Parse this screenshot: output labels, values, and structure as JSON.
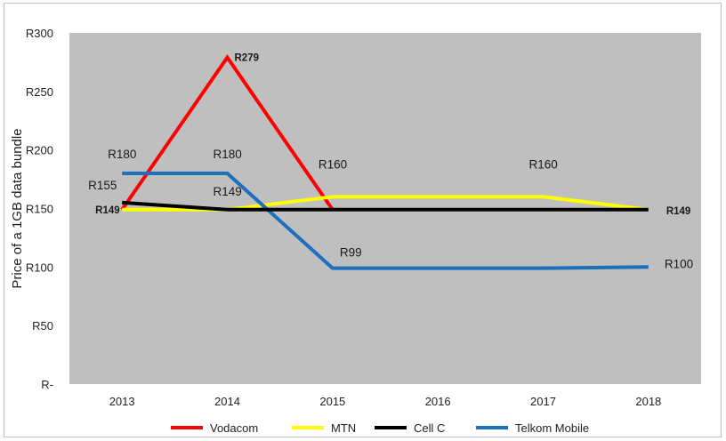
{
  "chart_data": {
    "type": "line",
    "ylabel": "Price of a 1GB data bundle",
    "categories": [
      "2013",
      "2014",
      "2015",
      "2016",
      "2017",
      "2018"
    ],
    "ylim": [
      0,
      300
    ],
    "yticks": [
      {
        "value": 300,
        "label": "R300"
      },
      {
        "value": 250,
        "label": "R250"
      },
      {
        "value": 200,
        "label": "R200"
      },
      {
        "value": 150,
        "label": "R150"
      },
      {
        "value": 100,
        "label": "R100"
      },
      {
        "value": 50,
        "label": "R50"
      },
      {
        "value": 0,
        "label": "R-"
      }
    ],
    "grid": false,
    "legend_position": "bottom",
    "series": [
      {
        "name": "Vodacom",
        "color": "#ff0000",
        "values": [
          149,
          279,
          149,
          null,
          null,
          null
        ]
      },
      {
        "name": "MTN",
        "color": "#ffff00",
        "values": [
          149,
          149,
          160,
          160,
          160,
          149
        ]
      },
      {
        "name": "Cell C",
        "color": "#000000",
        "values": [
          155,
          149,
          149,
          149,
          149,
          149
        ]
      },
      {
        "name": "Telkom  Mobile",
        "color": "#1f6fbf",
        "values": [
          180,
          180,
          99,
          99,
          99,
          100
        ]
      }
    ],
    "data_labels": [
      {
        "text": "R279",
        "series": 0,
        "index": 1,
        "style": "bold"
      },
      {
        "text": "R149",
        "series": 0,
        "index": 0,
        "style": "bold"
      },
      {
        "text": "R155",
        "series": 2,
        "index": 0,
        "style": "normal"
      },
      {
        "text": "R149",
        "series": 2,
        "index": 1,
        "style": "normal"
      },
      {
        "text": "R149",
        "series": 2,
        "index": 5,
        "style": "bold"
      },
      {
        "text": "R160",
        "series": 1,
        "index": 2,
        "style": "normal"
      },
      {
        "text": "R160",
        "series": 1,
        "index": 4,
        "style": "normal"
      },
      {
        "text": "R180",
        "series": 3,
        "index": 0,
        "style": "normal"
      },
      {
        "text": "R180",
        "series": 3,
        "index": 1,
        "style": "normal"
      },
      {
        "text": "R99",
        "series": 3,
        "index": 2,
        "style": "normal"
      },
      {
        "text": "R100",
        "series": 3,
        "index": 5,
        "style": "normal"
      }
    ]
  }
}
